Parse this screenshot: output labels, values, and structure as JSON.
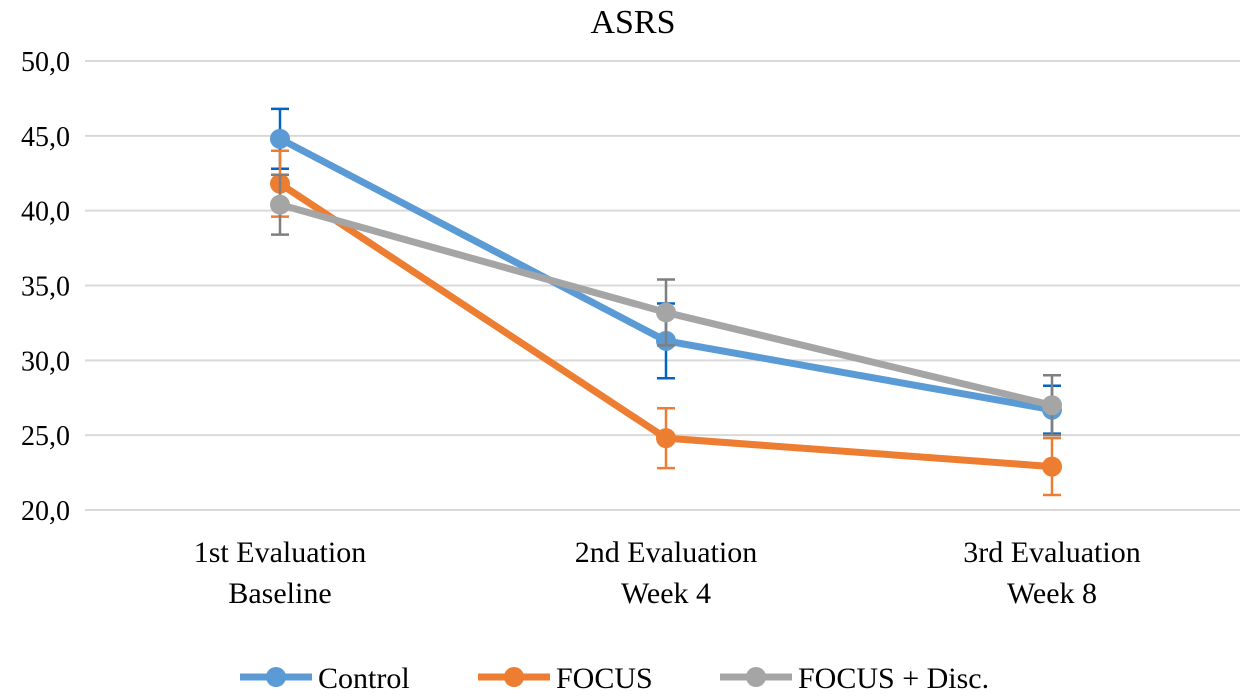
{
  "chart_data": {
    "type": "line",
    "title": "ASRS",
    "xlabel": "",
    "ylabel": "",
    "categories": [
      [
        "1st Evaluation",
        "Baseline"
      ],
      [
        "2nd Evaluation",
        "Week 4"
      ],
      [
        "3rd Evaluation",
        "Week 8"
      ]
    ],
    "ylim": [
      20,
      50
    ],
    "yticks": [
      "20,0",
      "25,0",
      "30,0",
      "35,0",
      "40,0",
      "45,0",
      "50,0"
    ],
    "grid": true,
    "legend_position": "bottom",
    "series": [
      {
        "name": "Control",
        "color": "#5B9BD5",
        "error_color": "#0563C1",
        "values": [
          44.8,
          31.3,
          26.7
        ],
        "errors": [
          2.0,
          2.5,
          1.6
        ]
      },
      {
        "name": "FOCUS",
        "color": "#ED7D31",
        "error_color": "#ED7D31",
        "values": [
          41.8,
          24.8,
          22.9
        ],
        "errors": [
          2.2,
          2.0,
          1.9
        ]
      },
      {
        "name": "FOCUS + Disc.",
        "color": "#A5A5A5",
        "error_color": "#7F7F7F",
        "values": [
          40.4,
          33.2,
          27.0
        ],
        "errors": [
          2.0,
          2.2,
          2.0
        ]
      }
    ]
  }
}
